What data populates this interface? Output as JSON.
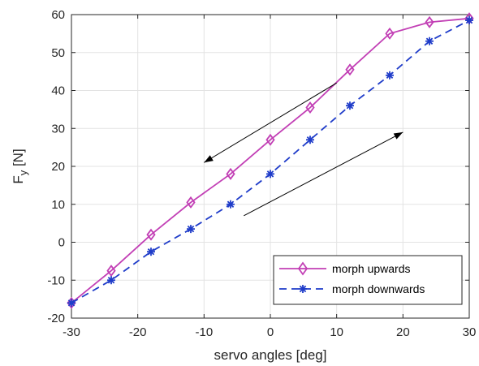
{
  "chart_data": {
    "type": "line",
    "xlabel": "servo angles [deg]",
    "ylabel": "F",
    "ylabel_sub": "y",
    "ylabel_unit": " [N]",
    "xlim": [
      -30,
      30
    ],
    "ylim": [
      -20,
      60
    ],
    "xticks": [
      -30,
      -20,
      -10,
      0,
      10,
      20,
      30
    ],
    "yticks": [
      -20,
      -10,
      0,
      10,
      20,
      30,
      40,
      50,
      60
    ],
    "grid": true,
    "legend_position": "bottom-right",
    "series": [
      {
        "name": "morph upwards",
        "color": "#c23fb5",
        "line_style": "solid",
        "marker": "diamond",
        "x": [
          -30,
          -24,
          -18,
          -12,
          -6,
          0,
          6,
          12,
          18,
          24,
          30
        ],
        "y": [
          -16,
          -7.5,
          2,
          10.5,
          18,
          27,
          35.5,
          45.5,
          55,
          58,
          59
        ]
      },
      {
        "name": "morph downwards",
        "color": "#1f3cc9",
        "line_style": "dashed",
        "marker": "asterisk",
        "x": [
          -30,
          -24,
          -18,
          -12,
          -6,
          0,
          6,
          12,
          18,
          24,
          30
        ],
        "y": [
          -16,
          -10,
          -2.5,
          3.5,
          10,
          18,
          27,
          36,
          44,
          53,
          58.5
        ]
      }
    ],
    "annotations": [
      {
        "type": "arrow",
        "x0": 10,
        "y0": 42,
        "x1": -10,
        "y1": 21
      },
      {
        "type": "arrow",
        "x0": -4,
        "y0": 7,
        "x1": 20,
        "y1": 29
      }
    ]
  }
}
